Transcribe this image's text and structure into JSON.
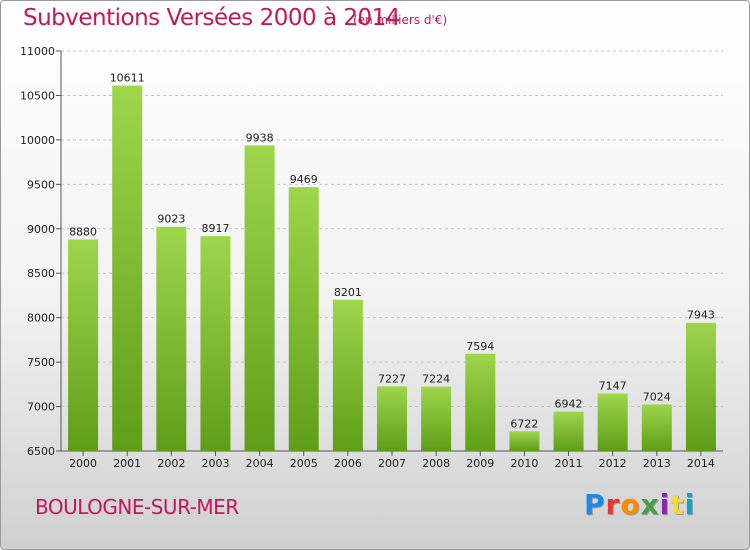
{
  "header": {
    "title": "Subventions Versées 2000 à 2014",
    "subtitle": "(en milliers d'€)"
  },
  "footer": {
    "city": "BOULOGNE-SUR-MER",
    "logo_text": "Proxiti"
  },
  "colors": {
    "bar_top": "#9ed64c",
    "bar_bottom": "#5f9e18",
    "title": "#c2185b"
  },
  "chart_data": {
    "type": "bar",
    "title": "Subventions Versées 2000 à 2014",
    "subtitle": "(en milliers d'€)",
    "categories": [
      "2000",
      "2001",
      "2002",
      "2003",
      "2004",
      "2005",
      "2006",
      "2007",
      "2008",
      "2009",
      "2010",
      "2011",
      "2012",
      "2013",
      "2014"
    ],
    "values": [
      8880,
      10611,
      9023,
      8917,
      9938,
      9469,
      8201,
      7227,
      7224,
      7594,
      6722,
      6942,
      7147,
      7024,
      7943
    ],
    "data_labels": [
      "8880",
      "10611",
      "9023",
      "8917",
      "9938",
      "9469",
      "8201",
      "7227",
      "7224",
      "7594",
      "6722",
      "6942",
      "7147",
      "7024",
      "7943"
    ],
    "ylim": [
      6500,
      11000
    ],
    "yticks": [
      6500,
      7000,
      7500,
      8000,
      8500,
      9000,
      9500,
      10000,
      10500,
      11000
    ],
    "ytick_labels": [
      "6500",
      "7000",
      "7500",
      "8000",
      "8500",
      "9000",
      "9500",
      "10000",
      "10500",
      "11000"
    ],
    "xlabel": "",
    "ylabel": "",
    "grid": true,
    "legend": "none"
  }
}
